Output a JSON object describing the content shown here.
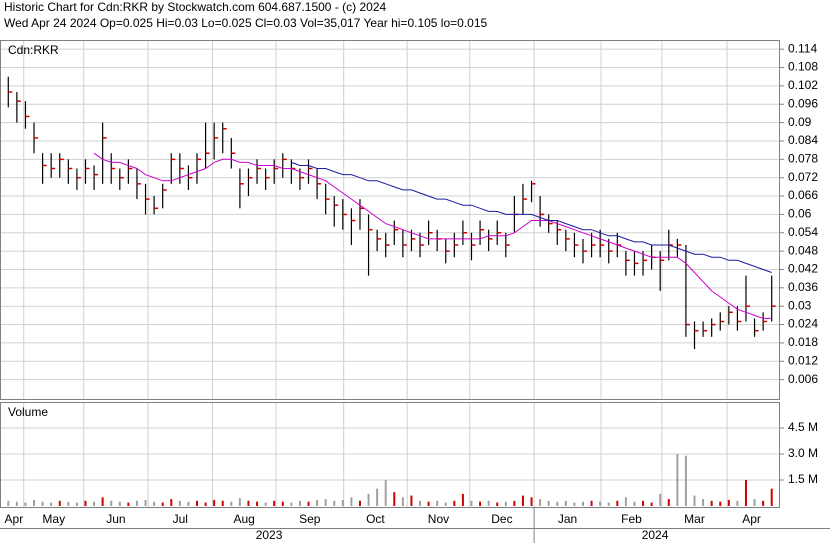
{
  "chart_data": [
    {
      "type": "ohlc",
      "title": "Historic Chart for Cdn:RKR by Stockwatch.com 604.687.1500 - (c) 2024",
      "subtitle": "Wed Apr 24 2024  Op=0.025  Hi=0.03  Lo=0.025  Cl=0.03  Vol=35,017  Year hi=0.105  lo=0.015",
      "label": "Cdn:RKR",
      "x": [
        0,
        1,
        2,
        3,
        4,
        5,
        6,
        7,
        8,
        9,
        10,
        11,
        12,
        13,
        14,
        15,
        16,
        17,
        18,
        19,
        20,
        21,
        22,
        23,
        24,
        25,
        26,
        27,
        28,
        29,
        30,
        31,
        32,
        33,
        34,
        35,
        36,
        37,
        38,
        39,
        40,
        41,
        42,
        43,
        44,
        45,
        46,
        47,
        48,
        49,
        50,
        51,
        52,
        53,
        54,
        55,
        56,
        57,
        58,
        59,
        60,
        61,
        62,
        63,
        64,
        65,
        66,
        67,
        68,
        69,
        70,
        71,
        72,
        73,
        74,
        75,
        76,
        77,
        78,
        79,
        80,
        81,
        82,
        83,
        84,
        85,
        86,
        87,
        88,
        89
      ],
      "high": [
        0.105,
        0.1,
        0.097,
        0.09,
        0.08,
        0.08,
        0.08,
        0.078,
        0.075,
        0.078,
        0.076,
        0.09,
        0.08,
        0.075,
        0.078,
        0.075,
        0.07,
        0.066,
        0.07,
        0.08,
        0.08,
        0.076,
        0.08,
        0.09,
        0.09,
        0.09,
        0.085,
        0.075,
        0.075,
        0.078,
        0.075,
        0.078,
        0.08,
        0.078,
        0.075,
        0.078,
        0.075,
        0.07,
        0.066,
        0.065,
        0.062,
        0.065,
        0.06,
        0.055,
        0.054,
        0.058,
        0.055,
        0.055,
        0.054,
        0.058,
        0.055,
        0.052,
        0.054,
        0.058,
        0.054,
        0.058,
        0.055,
        0.058,
        0.054,
        0.066,
        0.07,
        0.071,
        0.066,
        0.06,
        0.058,
        0.055,
        0.054,
        0.052,
        0.054,
        0.055,
        0.052,
        0.054,
        0.048,
        0.048,
        0.048,
        0.05,
        0.048,
        0.055,
        0.052,
        0.05,
        0.025,
        0.025,
        0.026,
        0.028,
        0.03,
        0.03,
        0.04,
        0.026,
        0.028,
        0.04
      ],
      "low": [
        0.095,
        0.09,
        0.088,
        0.08,
        0.07,
        0.072,
        0.072,
        0.07,
        0.068,
        0.07,
        0.068,
        0.07,
        0.07,
        0.068,
        0.07,
        0.065,
        0.06,
        0.06,
        0.062,
        0.07,
        0.07,
        0.068,
        0.07,
        0.075,
        0.078,
        0.08,
        0.075,
        0.062,
        0.066,
        0.07,
        0.068,
        0.07,
        0.072,
        0.07,
        0.068,
        0.07,
        0.065,
        0.06,
        0.056,
        0.055,
        0.05,
        0.055,
        0.04,
        0.048,
        0.046,
        0.05,
        0.046,
        0.048,
        0.046,
        0.05,
        0.048,
        0.044,
        0.046,
        0.05,
        0.045,
        0.05,
        0.048,
        0.05,
        0.046,
        0.054,
        0.06,
        0.064,
        0.056,
        0.054,
        0.05,
        0.048,
        0.046,
        0.044,
        0.046,
        0.046,
        0.044,
        0.046,
        0.04,
        0.04,
        0.04,
        0.042,
        0.035,
        0.045,
        0.046,
        0.02,
        0.016,
        0.02,
        0.02,
        0.022,
        0.024,
        0.022,
        0.025,
        0.02,
        0.022,
        0.025
      ],
      "close": [
        0.1,
        0.097,
        0.092,
        0.085,
        0.076,
        0.075,
        0.078,
        0.075,
        0.072,
        0.075,
        0.073,
        0.085,
        0.075,
        0.072,
        0.075,
        0.07,
        0.065,
        0.062,
        0.068,
        0.078,
        0.075,
        0.072,
        0.078,
        0.08,
        0.085,
        0.088,
        0.08,
        0.07,
        0.072,
        0.075,
        0.072,
        0.075,
        0.078,
        0.075,
        0.072,
        0.075,
        0.07,
        0.065,
        0.063,
        0.06,
        0.058,
        0.062,
        0.055,
        0.052,
        0.05,
        0.055,
        0.05,
        0.052,
        0.05,
        0.054,
        0.052,
        0.048,
        0.05,
        0.054,
        0.05,
        0.055,
        0.052,
        0.054,
        0.05,
        0.06,
        0.065,
        0.07,
        0.06,
        0.057,
        0.055,
        0.052,
        0.05,
        0.048,
        0.05,
        0.05,
        0.048,
        0.05,
        0.045,
        0.044,
        0.045,
        0.046,
        0.045,
        0.05,
        0.05,
        0.024,
        0.022,
        0.022,
        0.024,
        0.025,
        0.028,
        0.025,
        0.03,
        0.022,
        0.025,
        0.03
      ],
      "bar_color": "#000000",
      "close_color": "#d00000",
      "series": [
        {
          "color": "#cc00cc",
          "values": [
            null,
            null,
            null,
            null,
            null,
            null,
            null,
            null,
            null,
            null,
            0.08,
            0.078,
            0.077,
            0.077,
            0.076,
            0.075,
            0.073,
            0.072,
            0.071,
            0.071,
            0.072,
            0.073,
            0.074,
            0.075,
            0.077,
            0.078,
            0.078,
            0.077,
            0.077,
            0.076,
            0.076,
            0.076,
            0.075,
            0.075,
            0.074,
            0.073,
            0.072,
            0.071,
            0.069,
            0.067,
            0.065,
            0.063,
            0.061,
            0.059,
            0.057,
            0.056,
            0.055,
            0.054,
            0.053,
            0.052,
            0.052,
            0.052,
            0.052,
            0.052,
            0.052,
            0.052,
            0.053,
            0.053,
            0.053,
            0.054,
            0.056,
            0.058,
            0.058,
            0.058,
            0.057,
            0.056,
            0.055,
            0.054,
            0.053,
            0.052,
            0.051,
            0.05,
            0.049,
            0.048,
            0.047,
            0.046,
            0.046,
            0.046,
            0.046,
            0.044,
            0.041,
            0.038,
            0.035,
            0.033,
            0.031,
            0.029,
            0.028,
            0.027,
            0.026,
            0.026
          ]
        },
        {
          "color": "#1a1aa0",
          "values": [
            null,
            null,
            null,
            null,
            null,
            null,
            null,
            null,
            null,
            null,
            null,
            null,
            null,
            null,
            null,
            null,
            null,
            null,
            null,
            null,
            null,
            null,
            null,
            null,
            null,
            null,
            null,
            null,
            null,
            null,
            null,
            null,
            null,
            0.077,
            0.076,
            0.076,
            0.075,
            0.075,
            0.074,
            0.073,
            0.073,
            0.072,
            0.071,
            0.071,
            0.07,
            0.069,
            0.068,
            0.068,
            0.067,
            0.066,
            0.065,
            0.065,
            0.064,
            0.063,
            0.063,
            0.062,
            0.061,
            0.061,
            0.06,
            0.06,
            0.06,
            0.06,
            0.059,
            0.058,
            0.058,
            0.057,
            0.056,
            0.055,
            0.055,
            0.054,
            0.053,
            0.053,
            0.052,
            0.051,
            0.051,
            0.05,
            0.05,
            0.05,
            0.049,
            0.048,
            0.047,
            0.047,
            0.046,
            0.046,
            0.045,
            0.045,
            0.044,
            0.043,
            0.042,
            0.041
          ]
        }
      ],
      "xlim": [
        -0.5,
        89.5
      ],
      "xticks": [
        {
          "value": -0.5,
          "label": "Apr"
        },
        {
          "value": 1.8,
          "label": "May"
        },
        {
          "value": 8.8,
          "label": "Jun"
        },
        {
          "value": 16.3,
          "label": "Jul"
        },
        {
          "value": 23.8,
          "label": "Aug"
        },
        {
          "value": 31.2,
          "label": "Sep"
        },
        {
          "value": 39.1,
          "label": "Oct"
        },
        {
          "value": 46.5,
          "label": "Nov"
        },
        {
          "value": 53.8,
          "label": "Dec"
        },
        {
          "value": 61.3,
          "label": "Jan"
        },
        {
          "value": 69.1,
          "label": "Feb"
        },
        {
          "value": 76.2,
          "label": "Mar"
        },
        {
          "value": 83.8,
          "label": "Apr"
        }
      ],
      "year_ticks": [
        {
          "value": -0.5,
          "label": "2023"
        },
        {
          "value": 61.3,
          "label": "2024"
        }
      ],
      "ylim": [
        0,
        0.117
      ],
      "yticks": [
        0.006,
        0.012,
        0.018,
        0.024,
        0.03,
        0.036,
        0.042,
        0.048,
        0.054,
        0.06,
        0.066,
        0.072,
        0.078,
        0.084,
        0.09,
        0.096,
        0.102,
        0.108,
        0.114
      ],
      "grid": true
    },
    {
      "type": "volume",
      "label": "Volume",
      "values": [
        300000,
        250000,
        200000,
        350000,
        250000,
        200000,
        300000,
        250000,
        200000,
        300000,
        250000,
        500000,
        300000,
        250000,
        200000,
        300000,
        350000,
        250000,
        200000,
        400000,
        300000,
        250000,
        300000,
        200000,
        350000,
        300000,
        250000,
        450000,
        300000,
        250000,
        200000,
        300000,
        250000,
        200000,
        300000,
        250000,
        350000,
        400000,
        300000,
        350000,
        500000,
        300000,
        700000,
        1000000,
        1500000,
        800000,
        500000,
        600000,
        300000,
        250000,
        300000,
        200000,
        300000,
        700000,
        300000,
        250000,
        300000,
        200000,
        250000,
        300000,
        600000,
        500000,
        400000,
        300000,
        250000,
        300000,
        200000,
        250000,
        300000,
        250000,
        200000,
        300000,
        500000,
        250000,
        300000,
        200000,
        700000,
        400000,
        3000000,
        2900000,
        600000,
        400000,
        300000,
        250000,
        350000,
        300000,
        1500000,
        400000,
        300000,
        1000000
      ],
      "up_color": "#d00000",
      "down_color": "#a0a0a0",
      "ylim": [
        0,
        6000000
      ],
      "yticks": [
        {
          "value": 1500000,
          "label": "1.5 M"
        },
        {
          "value": 3000000,
          "label": "3.0 M"
        },
        {
          "value": 4500000,
          "label": "4.5 M"
        }
      ],
      "grid": true
    }
  ]
}
